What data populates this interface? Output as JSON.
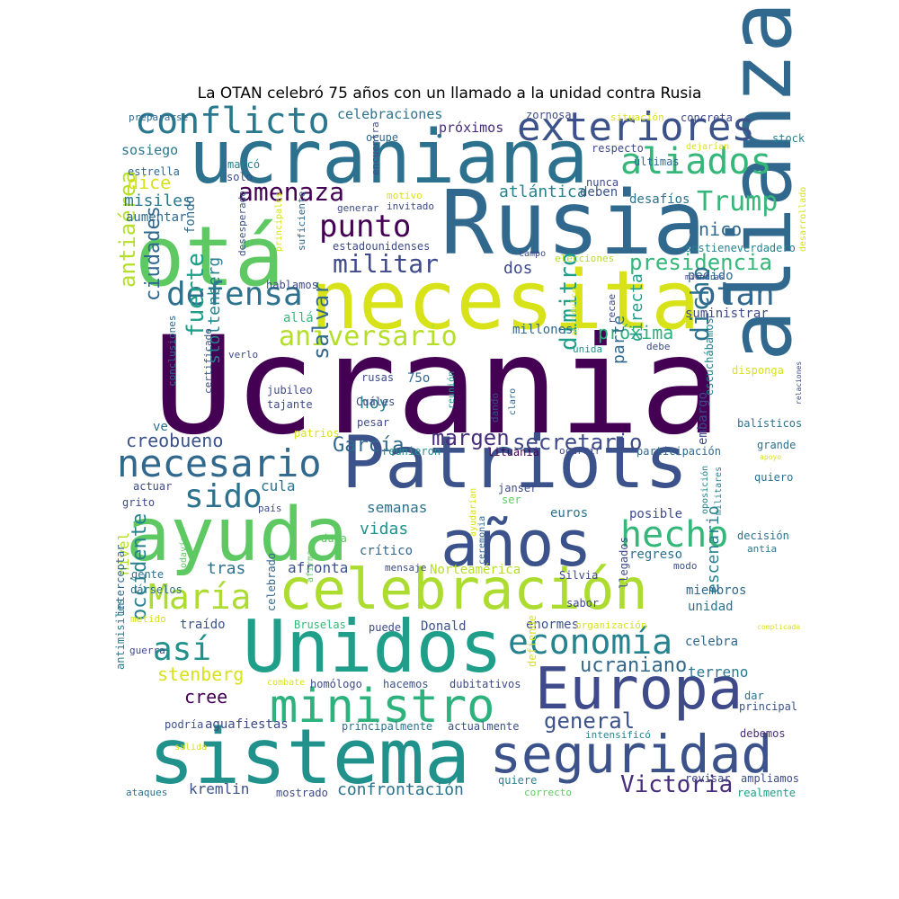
{
  "title": "La OTAN celebró 75 años con un llamado a la unidad contra Rusia",
  "palette": {
    "dark_purple": "#440154",
    "purple": "#482878",
    "indigo": "#3e4a89",
    "blue": "#31688e",
    "teal": "#26828e",
    "sea": "#1f9e89",
    "green": "#35b779",
    "lime": "#6ece58",
    "yellowgreen": "#b5de2b",
    "yellow": "#d8e219"
  },
  "words": [
    {
      "text": "Ucrania",
      "color": "#440154"
    },
    {
      "text": "alianza",
      "color": "#31688e"
    },
    {
      "text": "necesita",
      "color": "#d8e219"
    },
    {
      "text": "Rusia",
      "color": "#31688e"
    },
    {
      "text": "ucraniana",
      "color": "#2c728e"
    },
    {
      "text": "otá",
      "color": "#5ec962"
    },
    {
      "text": "sistema",
      "color": "#21918c"
    },
    {
      "text": "Patriots",
      "color": "#3b528b"
    },
    {
      "text": "Unidos",
      "color": "#1f9e89"
    },
    {
      "text": "ayuda",
      "color": "#5ec962"
    },
    {
      "text": "celebración",
      "color": "#addc30"
    },
    {
      "text": "años",
      "color": "#3b528b"
    },
    {
      "text": "Europa",
      "color": "#3e4a89"
    },
    {
      "text": "seguridad",
      "color": "#3b528b"
    },
    {
      "text": "ministro",
      "color": "#2db27d"
    },
    {
      "text": "exteriores",
      "color": "#3b528b"
    },
    {
      "text": "conflicto",
      "color": "#2a788e"
    },
    {
      "text": "aliados",
      "color": "#35b779"
    },
    {
      "text": "hecho",
      "color": "#35b779"
    },
    {
      "text": "economía",
      "color": "#26828e"
    },
    {
      "text": "necesario",
      "color": "#31688e"
    },
    {
      "text": "defensa",
      "color": "#2c728e"
    },
    {
      "text": "María",
      "color": "#addc30"
    },
    {
      "text": "sido",
      "color": "#2c728e"
    },
    {
      "text": "así",
      "color": "#21918c"
    },
    {
      "text": "punto",
      "color": "#440154"
    },
    {
      "text": "amenaza",
      "color": "#440154"
    },
    {
      "text": "otan",
      "color": "#31688e"
    },
    {
      "text": "Trump",
      "color": "#35b779"
    },
    {
      "text": "aniversario",
      "color": "#b5de2b"
    },
    {
      "text": "militar",
      "color": "#3e4a89"
    },
    {
      "text": "presidencia",
      "color": "#35b779"
    },
    {
      "text": "Victoria",
      "color": "#472d7b"
    },
    {
      "text": "general",
      "color": "#3b528b"
    },
    {
      "text": "ucraniano",
      "color": "#31688e"
    },
    {
      "text": "dicho",
      "color": "#2c728e"
    },
    {
      "text": "dimitro",
      "color": "#1f9e89"
    },
    {
      "text": "salvar",
      "color": "#31688e"
    },
    {
      "text": "fuerte",
      "color": "#1f9e89"
    },
    {
      "text": "ciudades",
      "color": "#31688e"
    },
    {
      "text": "antiaérea",
      "color": "#b5de2b"
    },
    {
      "text": "occidente",
      "color": "#26828e"
    },
    {
      "text": "secretario",
      "color": "#3e4a89"
    },
    {
      "text": "margen",
      "color": "#472d7b"
    },
    {
      "text": "García",
      "color": "#31688e"
    },
    {
      "text": "creobueno",
      "color": "#3b528b"
    },
    {
      "text": "cree",
      "color": "#440154"
    },
    {
      "text": "stenberg",
      "color": "#d8e219"
    },
    {
      "text": "kremlin",
      "color": "#3b528b"
    },
    {
      "text": "confrontación",
      "color": "#2c728e"
    },
    {
      "text": "escenario",
      "color": "#26828e"
    },
    {
      "text": "próxima",
      "color": "#2db27d"
    },
    {
      "text": "único",
      "color": "#31688e"
    },
    {
      "text": "misiles",
      "color": "#2a788e"
    },
    {
      "text": "dice",
      "color": "#d8e219"
    },
    {
      "text": "atlántica",
      "color": "#26828e"
    },
    {
      "text": "sosiego",
      "color": "#2a788e"
    },
    {
      "text": "celebraciones",
      "color": "#2c728e"
    },
    {
      "text": "próximos",
      "color": "#472d7b"
    },
    {
      "text": "desafíos",
      "color": "#2c728e"
    },
    {
      "text": "deben",
      "color": "#3b528b"
    },
    {
      "text": "dos",
      "color": "#3e4a89"
    },
    {
      "text": "pedido",
      "color": "#31688e"
    },
    {
      "text": "suministrar",
      "color": "#3e4a89"
    },
    {
      "text": "millones",
      "color": "#31688e"
    },
    {
      "text": "allá",
      "color": "#35b779"
    },
    {
      "text": "hoy",
      "color": "#26828e"
    },
    {
      "text": "parte",
      "color": "#31688e"
    },
    {
      "text": "directa",
      "color": "#1f9e89"
    },
    {
      "text": "cula",
      "color": "#2c728e"
    },
    {
      "text": "semanas",
      "color": "#2c728e"
    },
    {
      "text": "vidas",
      "color": "#21918c"
    },
    {
      "text": "tras",
      "color": "#2c728e"
    },
    {
      "text": "crítico",
      "color": "#31688e"
    },
    {
      "text": "afronta",
      "color": "#3b528b"
    },
    {
      "text": "nivel",
      "color": "#b5de2b"
    },
    {
      "text": "regreso",
      "color": "#2c728e"
    },
    {
      "text": "posible",
      "color": "#3e4a89"
    },
    {
      "text": "embargo",
      "color": "#3e4a89"
    },
    {
      "text": "euros",
      "color": "#2c728e"
    },
    {
      "text": "miembros",
      "color": "#31688e"
    },
    {
      "text": "unidad",
      "color": "#2c728e"
    },
    {
      "text": "celebra",
      "color": "#31688e"
    },
    {
      "text": "terreno",
      "color": "#2a788e"
    },
    {
      "text": "traído",
      "color": "#3b528b"
    },
    {
      "text": "Donald",
      "color": "#3b528b"
    },
    {
      "text": "enormes",
      "color": "#3b528b"
    },
    {
      "text": "Norteamérica",
      "color": "#b5de2b"
    },
    {
      "text": "aumentar",
      "color": "#31688e"
    },
    {
      "text": "fondo",
      "color": "#31688e"
    },
    {
      "text": "stoltenberg",
      "color": "#26828e"
    },
    {
      "text": "aguafiestas",
      "color": "#3e4a89"
    },
    {
      "text": "principalmente",
      "color": "#2c728e"
    },
    {
      "text": "actualmente",
      "color": "#3b528b"
    },
    {
      "text": "mostrado",
      "color": "#3e4a89"
    },
    {
      "text": "quiere",
      "color": "#26828e"
    },
    {
      "text": "revisar",
      "color": "#3e4a89"
    },
    {
      "text": "correcto",
      "color": "#5ec962"
    },
    {
      "text": "realmente",
      "color": "#1f9e89"
    },
    {
      "text": "ampliamos",
      "color": "#3e4a89"
    },
    {
      "text": "debemos",
      "color": "#472d7b"
    },
    {
      "text": "intensificó",
      "color": "#26828e"
    },
    {
      "text": "principal",
      "color": "#3b528b"
    },
    {
      "text": "dar",
      "color": "#2c728e"
    },
    {
      "text": "defiende",
      "color": "#d8e219"
    },
    {
      "text": "hacemos",
      "color": "#3b528b"
    },
    {
      "text": "dubitativos",
      "color": "#3e4a89"
    },
    {
      "text": "combate",
      "color": "#d8e219"
    },
    {
      "text": "homólogo",
      "color": "#3e4a89"
    },
    {
      "text": "podría",
      "color": "#3b528b"
    },
    {
      "text": "ataques",
      "color": "#2c728e"
    },
    {
      "text": "salida",
      "color": "#d8e219"
    },
    {
      "text": "antimisiles",
      "color": "#26828e"
    },
    {
      "text": "interceptar",
      "color": "#31688e"
    },
    {
      "text": "guerra",
      "color": "#3e4a89"
    },
    {
      "text": "metido",
      "color": "#d8e219"
    },
    {
      "text": "dárselos",
      "color": "#2c728e"
    },
    {
      "text": "gente",
      "color": "#2c728e"
    },
    {
      "text": "celebrado",
      "color": "#31688e"
    },
    {
      "text": "Bruselas",
      "color": "#35b779"
    },
    {
      "text": "puede",
      "color": "#3e4a89"
    },
    {
      "text": "organización",
      "color": "#d8e219"
    },
    {
      "text": "sabor",
      "color": "#3e4a89"
    },
    {
      "text": "llegados",
      "color": "#3e4a89"
    },
    {
      "text": "Silvia",
      "color": "#3e4a89"
    },
    {
      "text": "mensaje",
      "color": "#3e4a89"
    },
    {
      "text": "ceremonia",
      "color": "#31688e"
    },
    {
      "text": "ayudarían",
      "color": "#d8e219"
    },
    {
      "text": "modo",
      "color": "#3b528b"
    },
    {
      "text": "antia",
      "color": "#2a788e"
    },
    {
      "text": "decisión",
      "color": "#2c728e"
    },
    {
      "text": "quiero",
      "color": "#2c728e"
    },
    {
      "text": "militares",
      "color": "#26828e"
    },
    {
      "text": "oposición",
      "color": "#26828e"
    },
    {
      "text": "grande",
      "color": "#2c728e"
    },
    {
      "text": "apoyo",
      "color": "#d8e219"
    },
    {
      "text": "complicada",
      "color": "#d8e219"
    },
    {
      "text": "balísticos",
      "color": "#2c728e"
    },
    {
      "text": "relaciones",
      "color": "#3e4a89"
    },
    {
      "text": "disponga",
      "color": "#d8e219"
    },
    {
      "text": "escuchábamos",
      "color": "#26828e"
    },
    {
      "text": "debe",
      "color": "#3e4a89"
    },
    {
      "text": "participación",
      "color": "#31688e"
    },
    {
      "text": "ocurrir",
      "color": "#3e4a89"
    },
    {
      "text": "lituania",
      "color": "#440154"
    },
    {
      "text": "ser",
      "color": "#5ec962"
    },
    {
      "text": "janser",
      "color": "#3e4a89"
    },
    {
      "text": "reunieron",
      "color": "#21918c"
    },
    {
      "text": "patrios",
      "color": "#d8e219"
    },
    {
      "text": "pesar",
      "color": "#3e4a89"
    },
    {
      "text": "Cuáles",
      "color": "#3e4a89"
    },
    {
      "text": "rusas",
      "color": "#3e4a89"
    },
    {
      "text": "reunión",
      "color": "#21918c"
    },
    {
      "text": "dando",
      "color": "#3e4a89"
    },
    {
      "text": "claro",
      "color": "#31688e"
    },
    {
      "text": "jubileo",
      "color": "#3e4a89"
    },
    {
      "text": "tajante",
      "color": "#3e4a89"
    },
    {
      "text": "75o",
      "color": "#31688e"
    },
    {
      "text": "certificado",
      "color": "#3b528b"
    },
    {
      "text": "conclusiones",
      "color": "#31688e"
    },
    {
      "text": "verlo",
      "color": "#3e4a89"
    },
    {
      "text": "ve",
      "color": "#2c728e"
    },
    {
      "text": "unida",
      "color": "#21918c"
    },
    {
      "text": "recae",
      "color": "#3e4a89"
    },
    {
      "text": "agridulce",
      "color": "#d8e219"
    },
    {
      "text": "hablamos",
      "color": "#3e4a89"
    },
    {
      "text": "mientras",
      "color": "#3e4a89"
    },
    {
      "text": "sostieneverdadero",
      "color": "#26828e"
    },
    {
      "text": "campo",
      "color": "#3e4a89"
    },
    {
      "text": "elecciones",
      "color": "#b5de2b"
    },
    {
      "text": "estadounidenses",
      "color": "#3e4a89"
    },
    {
      "text": "principales",
      "color": "#d8e219"
    },
    {
      "text": "suficiente",
      "color": "#31688e"
    },
    {
      "text": "desesperado",
      "color": "#3b528b"
    },
    {
      "text": "generar",
      "color": "#3e4a89"
    },
    {
      "text": "invitado",
      "color": "#3e4a89"
    },
    {
      "text": "motivo",
      "color": "#d8e219"
    },
    {
      "text": "desarrollado",
      "color": "#d8e219"
    },
    {
      "text": "nunca",
      "color": "#3e4a89"
    },
    {
      "text": "últimas",
      "color": "#31688e"
    },
    {
      "text": "dejarían",
      "color": "#d8e219"
    },
    {
      "text": "respecto",
      "color": "#3e4a89"
    },
    {
      "text": "stock",
      "color": "#26828e"
    },
    {
      "text": "concreta",
      "color": "#3e4a89"
    },
    {
      "text": "situación",
      "color": "#d8e219"
    },
    {
      "text": "zornosa",
      "color": "#3e4a89"
    },
    {
      "text": "encuentra",
      "color": "#3e4a89"
    },
    {
      "text": "ocupe",
      "color": "#31688e"
    },
    {
      "text": "prepararse",
      "color": "#31688e"
    },
    {
      "text": "estrella",
      "color": "#31688e"
    },
    {
      "text": "marcó",
      "color": "#26828e"
    },
    {
      "text": "solo",
      "color": "#3e4a89"
    },
    {
      "text": "actuar",
      "color": "#3e4a89"
    },
    {
      "text": "grito",
      "color": "#3e4a89"
    },
    {
      "text": "país",
      "color": "#3e4a89"
    },
    {
      "text": "duda",
      "color": "#5ec962"
    },
    {
      "text": "todavía",
      "color": "#5ec962"
    },
    {
      "text": "afirma",
      "color": "#5ec962"
    },
    {
      "text": "•",
      "color": "#2c728e"
    }
  ]
}
